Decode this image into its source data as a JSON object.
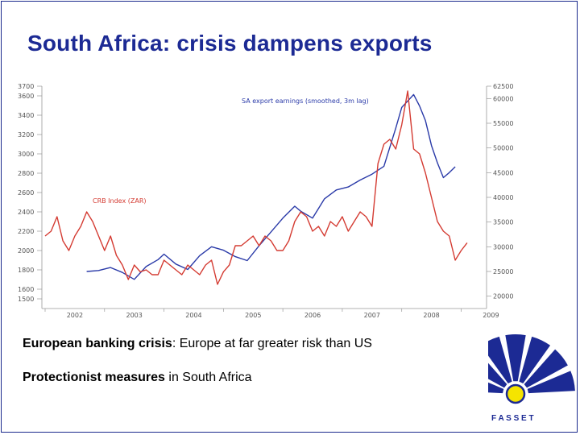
{
  "slide": {
    "title": "South Africa: crisis dampens exports",
    "bullets": [
      {
        "bold": "European banking crisis",
        "rest": ": Europe at far greater risk than US"
      },
      {
        "bold": "Protectionist measures",
        "rest": " in South Africa"
      }
    ]
  },
  "logo": {
    "text": "F A S S E T",
    "colors": {
      "rays": "#1c2a94",
      "sun": "#f5e400"
    }
  },
  "chart_data": {
    "type": "line",
    "x_range": [
      2002.0,
      2009.4
    ],
    "x_ticks": [
      "2002",
      "2003",
      "2004",
      "2005",
      "2006",
      "2007",
      "2008",
      "2009"
    ],
    "y_left": {
      "range": [
        1400,
        3700
      ],
      "ticks": [
        "3700",
        "3600",
        "3400",
        "3200",
        "3000",
        "2800",
        "2600",
        "2400",
        "2200",
        "2000",
        "1800",
        "1600",
        "1500"
      ]
    },
    "y_right": {
      "range": [
        17500,
        62500
      ],
      "ticks": [
        "62500",
        "60000",
        "55000",
        "50000",
        "45000",
        "40000",
        "35000",
        "30000",
        "25000",
        "20000"
      ]
    },
    "series": [
      {
        "name": "SA export earnings (smoothed, 3m lag)",
        "axis": "right",
        "color": "#2a3aa8",
        "x": [
          2002.7,
          2002.9,
          2003.0,
          2003.1,
          2003.3,
          2003.5,
          2003.7,
          2003.9,
          2004.0,
          2004.2,
          2004.4,
          2004.6,
          2004.8,
          2005.0,
          2005.2,
          2005.4,
          2005.6,
          2005.8,
          2006.0,
          2006.2,
          2006.3,
          2006.5,
          2006.7,
          2006.9,
          2007.1,
          2007.3,
          2007.5,
          2007.7,
          2007.9,
          2008.0,
          2008.1,
          2008.2,
          2008.3,
          2008.4,
          2008.5,
          2008.6,
          2008.7,
          2008.8,
          2008.9
        ],
        "values": [
          25000,
          25200,
          25500,
          25800,
          24800,
          23400,
          26000,
          27400,
          28500,
          26500,
          25400,
          28200,
          30000,
          29300,
          28000,
          27200,
          30200,
          33000,
          35800,
          38200,
          37200,
          35800,
          39700,
          41500,
          42100,
          43500,
          44700,
          46300,
          54000,
          58200,
          59500,
          60800,
          58500,
          55500,
          50500,
          47000,
          44000,
          45000,
          46200
        ]
      },
      {
        "name": "CRB Index (ZAR)",
        "axis": "left",
        "color": "#d43b32",
        "x": [
          2002.0,
          2002.1,
          2002.2,
          2002.3,
          2002.4,
          2002.5,
          2002.6,
          2002.7,
          2002.8,
          2002.9,
          2003.0,
          2003.1,
          2003.2,
          2003.3,
          2003.4,
          2003.5,
          2003.6,
          2003.7,
          2003.8,
          2003.9,
          2004.0,
          2004.1,
          2004.2,
          2004.3,
          2004.4,
          2004.5,
          2004.6,
          2004.7,
          2004.8,
          2004.9,
          2005.0,
          2005.1,
          2005.2,
          2005.3,
          2005.4,
          2005.5,
          2005.6,
          2005.7,
          2005.8,
          2005.9,
          2006.0,
          2006.1,
          2006.2,
          2006.3,
          2006.4,
          2006.5,
          2006.6,
          2006.7,
          2006.8,
          2006.9,
          2007.0,
          2007.1,
          2007.2,
          2007.3,
          2007.4,
          2007.5,
          2007.6,
          2007.7,
          2007.8,
          2007.9,
          2008.0,
          2008.1,
          2008.2,
          2008.3,
          2008.4,
          2008.5,
          2008.6,
          2008.7,
          2008.8,
          2008.9,
          2009.0,
          2009.1
        ],
        "values": [
          2150,
          2200,
          2350,
          2100,
          2000,
          2150,
          2250,
          2400,
          2300,
          2150,
          2000,
          2150,
          1950,
          1850,
          1700,
          1850,
          1780,
          1800,
          1750,
          1750,
          1900,
          1850,
          1800,
          1750,
          1850,
          1800,
          1750,
          1850,
          1900,
          1650,
          1780,
          1850,
          2050,
          2050,
          2100,
          2150,
          2050,
          2150,
          2100,
          2000,
          2000,
          2100,
          2300,
          2400,
          2350,
          2200,
          2250,
          2150,
          2300,
          2250,
          2350,
          2200,
          2300,
          2400,
          2350,
          2250,
          2900,
          3100,
          3150,
          3050,
          3300,
          3650,
          3050,
          3000,
          2800,
          2550,
          2300,
          2200,
          2150,
          1900,
          2000,
          2080
        ]
      }
    ],
    "annotations": [
      {
        "text": "SA export earnings (smoothed, 3m lag)",
        "color": "#2a3aa8"
      },
      {
        "text": "CRB Index (ZAR)",
        "color": "#d43b32"
      }
    ]
  }
}
